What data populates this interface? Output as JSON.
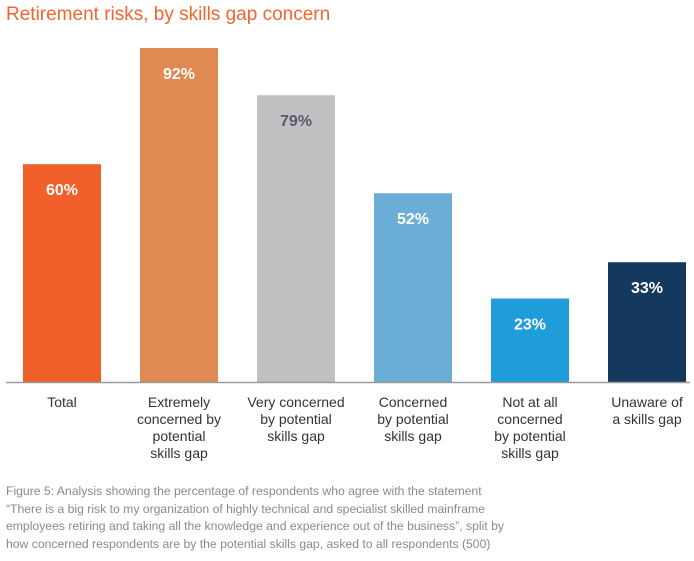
{
  "chart_data": {
    "type": "bar",
    "title": "Retirement risks, by skills gap concern",
    "categories": [
      [
        "Total"
      ],
      [
        "Extremely",
        "concerned by",
        "potential",
        "skills gap"
      ],
      [
        "Very concerned",
        "by potential",
        "skills gap"
      ],
      [
        "Concerned",
        "by potential",
        "skills gap"
      ],
      [
        "Not at all",
        "concerned",
        "by potential",
        "skills gap"
      ],
      [
        "Unaware of",
        "a skills gap"
      ]
    ],
    "values": [
      60,
      92,
      79,
      52,
      23,
      33
    ],
    "value_labels": [
      "60%",
      "92%",
      "79%",
      "52%",
      "23%",
      "33%"
    ],
    "colors": [
      "#f15f2a",
      "#df8a52",
      "#bec0c1",
      "#6aaed7",
      "#1f9ddb",
      "#15385e"
    ],
    "label_colors": [
      "#ffffff",
      "#ffffff",
      "#5a5a6a",
      "#ffffff",
      "#ffffff",
      "#ffffff"
    ],
    "ylim": [
      0,
      100
    ],
    "xlabel": "",
    "ylabel": "",
    "grid": false
  },
  "caption": {
    "lines": [
      "Figure 5: Analysis showing the percentage of respondents who agree with the statement",
      "“There is a big risk to my organization of highly technical and specialist skilled mainframe",
      "employees retiring and taking all the knowledge and experience out of the business”, split by",
      "how concerned respondents are by the potential skills gap, asked to all respondents (500)"
    ]
  }
}
